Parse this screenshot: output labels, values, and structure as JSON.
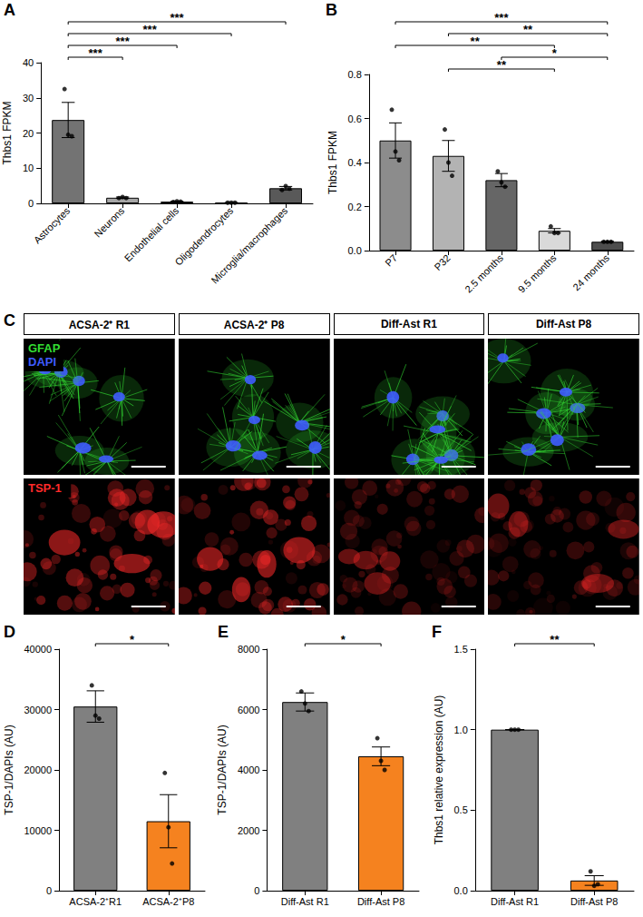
{
  "chart_data": [
    {
      "panel": "A",
      "type": "bar",
      "categories": [
        "Astrocytes",
        "Neurons",
        "Endothelial cells",
        "Oligodendrocytes",
        "Microglia/macrophages"
      ],
      "values": [
        23.7,
        1.6,
        0.5,
        0.2,
        4.3
      ],
      "errors": [
        5.0,
        0.2,
        0.1,
        0.03,
        0.5
      ],
      "points": [
        [
          32.5,
          19.5,
          19.1
        ],
        [
          1.5,
          1.8,
          1.5
        ],
        [
          0.4,
          0.6,
          0.5
        ],
        [
          0.2,
          0.2,
          0.2
        ],
        [
          3.8,
          4.9,
          4.2
        ]
      ],
      "colors": [
        "#737373",
        "#a6a6a6",
        "#8c8c8c",
        "#bfbfbf",
        "#595959"
      ],
      "y_label": "Thbs1 FPKM",
      "ylim": [
        0,
        40
      ],
      "yticks": [
        0,
        10,
        20,
        30,
        40
      ],
      "grid": false,
      "annotations": [
        {
          "from": "Astrocytes",
          "to": "Neurons",
          "label": "***"
        },
        {
          "from": "Astrocytes",
          "to": "Endothelial cells",
          "label": "***"
        },
        {
          "from": "Astrocytes",
          "to": "Oligodendrocytes",
          "label": "***"
        },
        {
          "from": "Astrocytes",
          "to": "Microglia/macrophages",
          "label": "***"
        }
      ]
    },
    {
      "panel": "B",
      "type": "bar",
      "categories": [
        "P7",
        "P32",
        "2.5 months",
        "9.5 months",
        "24 months"
      ],
      "values": [
        0.5,
        0.43,
        0.32,
        0.09,
        0.04
      ],
      "errors": [
        0.08,
        0.07,
        0.03,
        0.01,
        0.003
      ],
      "points": [
        [
          0.64,
          0.45,
          0.41
        ],
        [
          0.55,
          0.4,
          0.34
        ],
        [
          0.36,
          0.31,
          0.29
        ],
        [
          0.11,
          0.08,
          0.08
        ],
        [
          0.04,
          0.04,
          0.04
        ]
      ],
      "colors": [
        "#8c8c8c",
        "#b3b3b3",
        "#666666",
        "#d9d9d9",
        "#4d4d4d"
      ],
      "y_label": "Thbs1 FPKM",
      "ylim": [
        0,
        0.8
      ],
      "yticks": [
        {
          "value": 0,
          "label": "0.0"
        },
        0.2,
        0.4,
        0.6,
        0.8
      ],
      "grid": false,
      "annotations": [
        {
          "from": "P32",
          "to": "9.5 months",
          "label": "**"
        },
        {
          "from": "2.5 months",
          "to": "24 months",
          "label": "*"
        },
        {
          "from": "P7",
          "to": "9.5 months",
          "label": "**"
        },
        {
          "from": "P32",
          "to": "24 months",
          "label": "**"
        },
        {
          "from": "P7",
          "to": "24 months",
          "label": "***"
        }
      ]
    },
    {
      "panel": "D",
      "type": "bar",
      "categories": [
        "ACSA-2⁺R1",
        "ACSA-2⁺P8"
      ],
      "values": [
        30500,
        11500
      ],
      "errors": [
        2600,
        4400
      ],
      "points": [
        [
          34000,
          29000,
          28500
        ],
        [
          19500,
          10500,
          4500
        ]
      ],
      "colors": [
        "#808080",
        "#f5821f"
      ],
      "y_label": "TSP-1/DAPIs (AU)",
      "ylim": [
        0,
        40000
      ],
      "yticks": [
        0,
        10000,
        20000,
        30000,
        40000
      ],
      "grid": false,
      "annotations": [
        {
          "from": "ACSA-2⁺R1",
          "to": "ACSA-2⁺P8",
          "label": "*"
        }
      ]
    },
    {
      "panel": "E",
      "type": "bar",
      "categories": [
        "Diff-Ast R1",
        "Diff-Ast P8"
      ],
      "values": [
        6250,
        4450
      ],
      "errors": [
        300,
        310
      ],
      "points": [
        [
          6600,
          6200,
          5950
        ],
        [
          5050,
          4300,
          4000
        ]
      ],
      "colors": [
        "#808080",
        "#f5821f"
      ],
      "y_label": "TSP-1/DAPIs (AU)",
      "ylim": [
        0,
        8000
      ],
      "yticks": [
        0,
        2000,
        4000,
        6000,
        8000
      ],
      "grid": false,
      "annotations": [
        {
          "from": "Diff-Ast R1",
          "to": "Diff-Ast P8",
          "label": "*"
        }
      ]
    },
    {
      "panel": "F",
      "type": "bar",
      "categories": [
        "Diff-Ast R1",
        "Diff-Ast P8"
      ],
      "values": [
        1.0,
        0.063
      ],
      "errors": [
        0,
        0.03
      ],
      "points": [
        [
          1.0,
          1.0,
          1.0
        ],
        [
          0.12,
          0.03,
          0.04
        ]
      ],
      "colors": [
        "#808080",
        "#f5821f"
      ],
      "y_label": "Thbs1 relative expression (AU)",
      "ylim": [
        0,
        1.5
      ],
      "yticks": [
        {
          "value": 0,
          "label": "0.0"
        },
        0.5,
        {
          "value": 1,
          "label": "1.0"
        },
        1.5
      ],
      "grid": false,
      "annotations": [
        {
          "from": "Diff-Ast R1",
          "to": "Diff-Ast P8",
          "label": "**"
        }
      ]
    }
  ],
  "image_panel": {
    "panel": "C",
    "columns": [
      "ACSA-2⁺ R1",
      "ACSA-2⁺ P8",
      "Diff-Ast R1",
      "Diff-Ast P8"
    ],
    "rows": [
      [
        {
          "text": "GFAP",
          "color": "#33dd33"
        },
        {
          "text": "DAPI",
          "color": "#3f5cff"
        }
      ],
      [
        {
          "text": "TSP-1",
          "color": "#ff2a2a"
        }
      ]
    ]
  }
}
